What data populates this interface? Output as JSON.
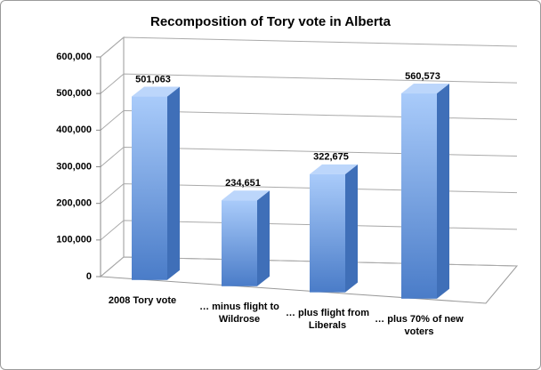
{
  "chart_data": {
    "type": "bar3d",
    "title": "Recomposition of Tory vote in Alberta",
    "categories": [
      "2008 Tory vote",
      "… minus flight to Wildrose",
      "… plus flight from Liberals",
      "… plus 70% of new voters"
    ],
    "values": [
      501063,
      234651,
      322675,
      560573
    ],
    "value_labels": [
      "501,063",
      "234,651",
      "322,675",
      "560,573"
    ],
    "color": "#6f9be0",
    "ylim": [
      0,
      600000
    ],
    "yticks": [
      0,
      {
        "value": 100000,
        "label": "100,000"
      },
      {
        "value": 200000,
        "label": "200,000"
      },
      {
        "value": 300000,
        "label": "300,000"
      },
      {
        "value": 400000,
        "label": "400,000"
      },
      {
        "value": 500000,
        "label": "500,000"
      },
      {
        "value": 600000,
        "label": "600,000"
      }
    ],
    "grid": true
  }
}
